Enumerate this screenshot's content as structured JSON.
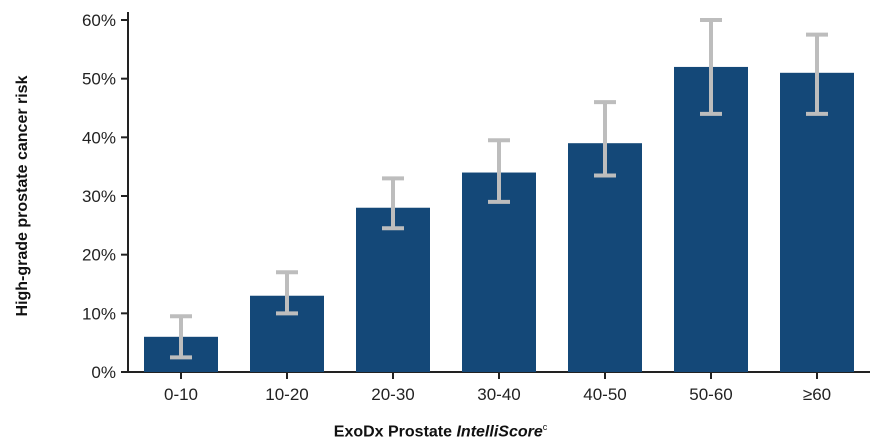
{
  "chart_data": {
    "type": "bar",
    "title": "",
    "xlabel": {
      "prefix": "ExoDx Prostate ",
      "italic": "IntelliScore",
      "superscript": "c"
    },
    "ylabel": "High-grade prostate cancer risk",
    "categories": [
      "0-10",
      "10-20",
      "20-30",
      "30-40",
      "40-50",
      "50-60",
      "≥60"
    ],
    "values": [
      6,
      13,
      28,
      34,
      39,
      52,
      51
    ],
    "error_low": [
      2.5,
      10,
      24.5,
      29,
      33.5,
      44,
      44
    ],
    "error_high": [
      9.5,
      17,
      33,
      39.5,
      46,
      60,
      57.5
    ],
    "y_ticks": [
      "0%",
      "10%",
      "20%",
      "30%",
      "40%",
      "50%",
      "60%"
    ],
    "ylim": [
      0,
      60
    ],
    "grid": false,
    "colors": {
      "bar": "#144878",
      "error_bar": "#bdbdbd",
      "axis": "#222222"
    }
  }
}
